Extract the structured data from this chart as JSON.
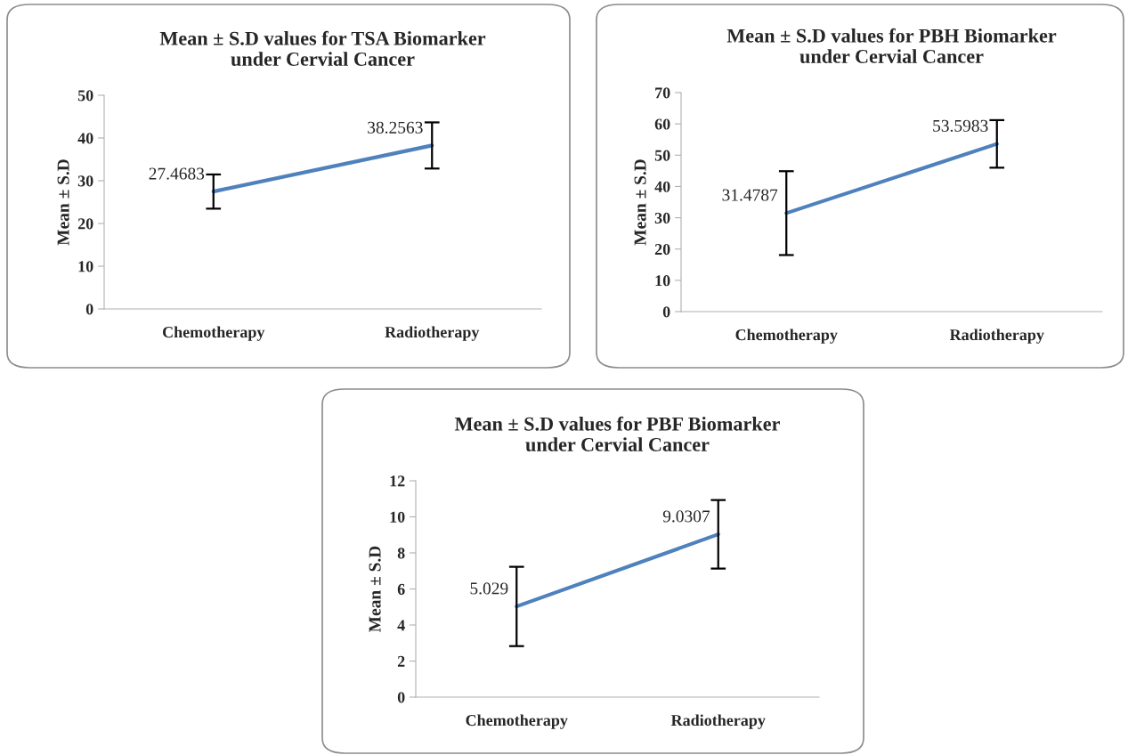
{
  "chart_data": [
    {
      "type": "line",
      "title": "Mean ± S.D values for TSA Biomarker\nunder Cervial Cancer",
      "ylabel": "Mean ± S.D",
      "categories": [
        "Chemotherapy",
        "Radiotherapy"
      ],
      "series": [
        {
          "color": "#4f81bd",
          "values": [
            27.4683,
            38.2563
          ],
          "errors": [
            4.0,
            5.4
          ]
        }
      ],
      "ylim": [
        0,
        50
      ],
      "yticks": [
        0,
        10,
        20,
        30,
        40,
        50
      ],
      "data_labels": true,
      "grid": false,
      "legend": false,
      "marker": "none"
    },
    {
      "type": "line",
      "title": "Mean ± S.D values for PBH Biomarker\nunder Cervial Cancer",
      "ylabel": "Mean ± S.D",
      "categories": [
        "Chemotherapy",
        "Radiotherapy"
      ],
      "series": [
        {
          "color": "#4f81bd",
          "values": [
            31.4787,
            53.5983
          ],
          "errors": [
            13.4,
            7.6
          ]
        }
      ],
      "ylim": [
        0,
        70
      ],
      "yticks": [
        0,
        10,
        20,
        30,
        40,
        50,
        60,
        70
      ],
      "data_labels": true,
      "grid": false,
      "legend": false,
      "marker": "none"
    },
    {
      "type": "line",
      "title": "Mean ± S.D values for PBF Biomarker\nunder Cervial Cancer",
      "ylabel": "Mean ± S.D",
      "categories": [
        "Chemotherapy",
        "Radiotherapy"
      ],
      "series": [
        {
          "color": "#4f81bd",
          "values": [
            5.029,
            9.0307
          ],
          "errors": [
            2.2,
            1.9
          ]
        }
      ],
      "ylim": [
        0,
        12
      ],
      "yticks": [
        0,
        2,
        4,
        6,
        8,
        10,
        12
      ],
      "data_labels": true,
      "grid": false,
      "legend": false,
      "marker": "none"
    }
  ]
}
